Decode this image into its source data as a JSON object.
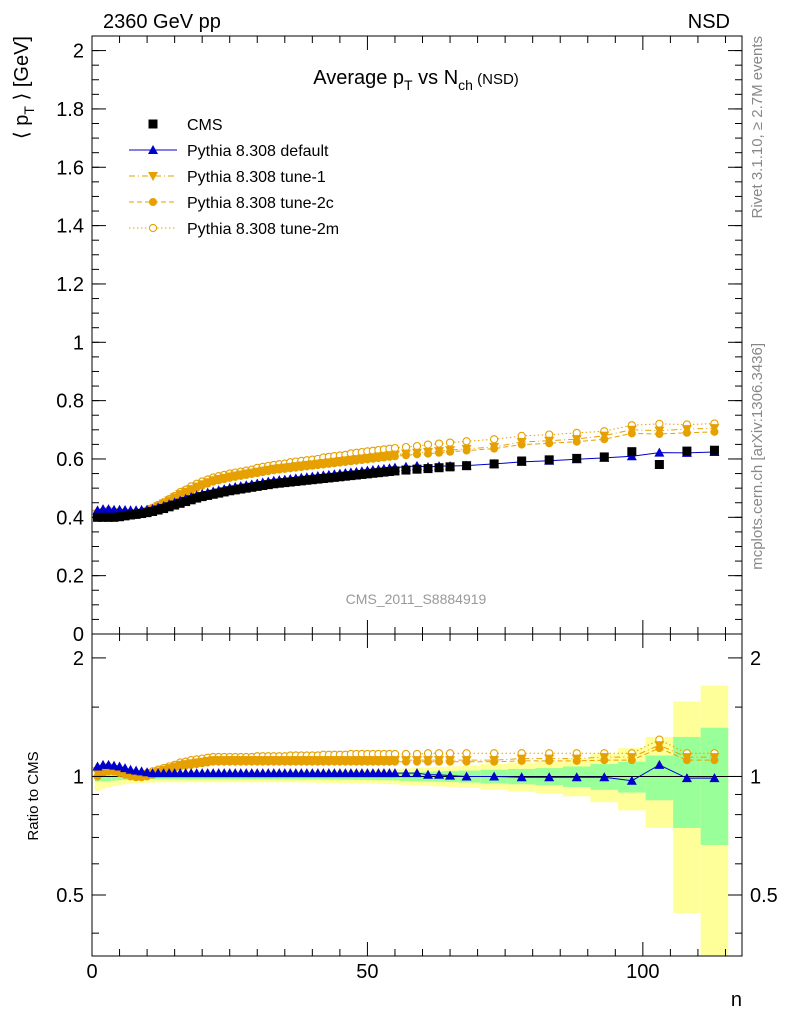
{
  "header": {
    "energy_label": "2360 GeV pp",
    "process_label": "NSD",
    "analysis_id": "CMS_2011_S8884919",
    "side_label_1": "Rivet 3.1.10, ≥ 2.7M events",
    "side_label_2": "mcplots.cern.ch [arXiv:1306.3436]"
  },
  "chart_data": {
    "type": "scatter",
    "title": "Average p",
    "title_sub_T": "T",
    "title_mid": " vs N",
    "title_sub_ch": "ch",
    "title_suffix": " (NSD)",
    "ylabel": "⟨ p",
    "ylabel_sub": "T",
    "ylabel_suffix": " ⟩ [GeV]",
    "xlabel": "n",
    "ratio_ylabel": "Ratio to CMS",
    "xlim": [
      0,
      118
    ],
    "ylim": [
      0,
      2.05
    ],
    "ratio_ylim": [
      0.35,
      2.3
    ],
    "ratio_log": true,
    "x_ticks": [
      0,
      50,
      100
    ],
    "y_ticks": [
      0,
      0.2,
      0.4,
      0.6,
      0.8,
      1,
      1.2,
      1.4,
      1.6,
      1.8,
      2
    ],
    "y_tick_labels": [
      "0",
      "0.2",
      "0.4",
      "0.6",
      "0.8",
      "1",
      "1.2",
      "1.4",
      "1.6",
      "1.8",
      "2"
    ],
    "ratio_ticks": [
      0.5,
      1,
      2
    ],
    "ratio_tick_labels": [
      "0.5",
      "1",
      "2"
    ],
    "legend_position": "top-left",
    "colors": {
      "cms": "#000000",
      "default": "#0000cc",
      "tunes": "#e6a000",
      "band_inner": "#99ff99",
      "band_outer": "#ffff99"
    },
    "series": [
      {
        "name": "CMS",
        "marker": "square",
        "x": [
          1,
          2,
          3,
          4,
          5,
          6,
          7,
          8,
          9,
          10,
          11,
          12,
          13,
          14,
          15,
          16,
          17,
          18,
          19,
          20,
          21,
          22,
          23,
          24,
          25,
          26,
          27,
          28,
          29,
          30,
          31,
          32,
          33,
          34,
          35,
          36,
          37,
          38,
          39,
          40,
          41,
          42,
          43,
          44,
          45,
          46,
          47,
          48,
          49,
          50,
          51,
          52,
          53,
          54,
          55,
          57,
          59,
          61,
          63,
          65,
          68,
          73,
          78,
          83,
          88,
          93,
          98,
          103,
          108,
          113
        ],
        "y": [
          0.4,
          0.4,
          0.4,
          0.4,
          0.402,
          0.405,
          0.408,
          0.41,
          0.413,
          0.416,
          0.42,
          0.425,
          0.43,
          0.436,
          0.442,
          0.448,
          0.454,
          0.46,
          0.466,
          0.471,
          0.475,
          0.479,
          0.483,
          0.487,
          0.491,
          0.494,
          0.497,
          0.5,
          0.503,
          0.506,
          0.509,
          0.512,
          0.515,
          0.517,
          0.519,
          0.521,
          0.523,
          0.525,
          0.527,
          0.529,
          0.531,
          0.533,
          0.535,
          0.537,
          0.539,
          0.541,
          0.543,
          0.545,
          0.547,
          0.549,
          0.551,
          0.553,
          0.555,
          0.557,
          0.559,
          0.562,
          0.565,
          0.567,
          0.57,
          0.573,
          0.577,
          0.583,
          0.593,
          0.597,
          0.602,
          0.607,
          0.625,
          0.581,
          0.627,
          0.63
        ],
        "ratio_inner": [
          0.03,
          0.028,
          0.026,
          0.024,
          0.022,
          0.02,
          0.019,
          0.018,
          0.017,
          0.016,
          0.016,
          0.016,
          0.016,
          0.016,
          0.016,
          0.016,
          0.016,
          0.016,
          0.016,
          0.016,
          0.016,
          0.016,
          0.016,
          0.016,
          0.016,
          0.016,
          0.016,
          0.016,
          0.016,
          0.016,
          0.016,
          0.016,
          0.016,
          0.016,
          0.016,
          0.016,
          0.016,
          0.017,
          0.017,
          0.017,
          0.017,
          0.018,
          0.018,
          0.018,
          0.019,
          0.019,
          0.019,
          0.02,
          0.02,
          0.02,
          0.021,
          0.021,
          0.022,
          0.022,
          0.023,
          0.025,
          0.027,
          0.028,
          0.03,
          0.032,
          0.035,
          0.04,
          0.045,
          0.05,
          0.06,
          0.075,
          0.09,
          0.13,
          0.26,
          0.33
        ],
        "ratio_outer": [
          0.08,
          0.07,
          0.06,
          0.055,
          0.05,
          0.045,
          0.042,
          0.04,
          0.038,
          0.036,
          0.035,
          0.034,
          0.034,
          0.034,
          0.034,
          0.034,
          0.034,
          0.034,
          0.034,
          0.034,
          0.034,
          0.034,
          0.034,
          0.034,
          0.034,
          0.034,
          0.034,
          0.034,
          0.034,
          0.034,
          0.034,
          0.034,
          0.034,
          0.034,
          0.034,
          0.034,
          0.034,
          0.035,
          0.035,
          0.035,
          0.036,
          0.036,
          0.037,
          0.037,
          0.038,
          0.038,
          0.039,
          0.039,
          0.04,
          0.04,
          0.041,
          0.042,
          0.043,
          0.044,
          0.045,
          0.048,
          0.051,
          0.054,
          0.057,
          0.06,
          0.065,
          0.075,
          0.085,
          0.095,
          0.11,
          0.14,
          0.18,
          0.26,
          0.55,
          0.7
        ]
      },
      {
        "name": "Pythia 8.308 default",
        "marker": "triangle-up",
        "x": [
          1,
          2,
          3,
          4,
          5,
          6,
          7,
          8,
          9,
          10,
          11,
          12,
          13,
          14,
          15,
          16,
          17,
          18,
          19,
          20,
          21,
          22,
          23,
          24,
          25,
          26,
          27,
          28,
          29,
          30,
          31,
          32,
          33,
          34,
          35,
          36,
          37,
          38,
          39,
          40,
          41,
          42,
          43,
          44,
          45,
          46,
          47,
          48,
          49,
          50,
          51,
          52,
          53,
          54,
          55,
          57,
          59,
          61,
          63,
          65,
          68,
          73,
          78,
          83,
          88,
          93,
          98,
          103,
          108,
          113
        ],
        "ratio": [
          1.06,
          1.07,
          1.07,
          1.065,
          1.06,
          1.05,
          1.04,
          1.035,
          1.03,
          1.025,
          1.02,
          1.02,
          1.02,
          1.02,
          1.02,
          1.02,
          1.02,
          1.02,
          1.02,
          1.02,
          1.02,
          1.02,
          1.02,
          1.02,
          1.02,
          1.02,
          1.02,
          1.02,
          1.02,
          1.02,
          1.02,
          1.02,
          1.02,
          1.02,
          1.02,
          1.02,
          1.02,
          1.02,
          1.02,
          1.02,
          1.02,
          1.02,
          1.02,
          1.02,
          1.02,
          1.02,
          1.02,
          1.02,
          1.02,
          1.02,
          1.02,
          1.02,
          1.02,
          1.02,
          1.02,
          1.02,
          1.02,
          1.01,
          1.01,
          1.005,
          1.0,
          1.0,
          0.995,
          0.995,
          0.995,
          0.995,
          0.975,
          1.07,
          0.99,
          0.99
        ]
      },
      {
        "name": "Pythia 8.308 tune-1",
        "marker": "triangle-down",
        "x": [
          1,
          2,
          3,
          4,
          5,
          6,
          7,
          8,
          9,
          10,
          11,
          12,
          13,
          14,
          15,
          16,
          17,
          18,
          19,
          20,
          21,
          22,
          23,
          24,
          25,
          26,
          27,
          28,
          29,
          30,
          31,
          32,
          33,
          34,
          35,
          36,
          37,
          38,
          39,
          40,
          41,
          42,
          43,
          44,
          45,
          46,
          47,
          48,
          49,
          50,
          51,
          52,
          53,
          54,
          55,
          57,
          59,
          61,
          63,
          65,
          68,
          73,
          78,
          83,
          88,
          93,
          98,
          103,
          108,
          113
        ],
        "ratio": [
          1.03,
          1.04,
          1.045,
          1.04,
          1.035,
          1.02,
          1.01,
          1.005,
          1.005,
          1.01,
          1.02,
          1.03,
          1.04,
          1.05,
          1.06,
          1.07,
          1.075,
          1.08,
          1.085,
          1.09,
          1.095,
          1.1,
          1.1,
          1.1,
          1.1,
          1.1,
          1.1,
          1.1,
          1.1,
          1.1,
          1.1,
          1.1,
          1.1,
          1.1,
          1.1,
          1.1,
          1.1,
          1.1,
          1.1,
          1.1,
          1.1,
          1.1,
          1.1,
          1.1,
          1.1,
          1.1,
          1.1,
          1.1,
          1.1,
          1.1,
          1.1,
          1.1,
          1.1,
          1.1,
          1.1,
          1.1,
          1.1,
          1.1,
          1.1,
          1.1,
          1.1,
          1.1,
          1.11,
          1.11,
          1.11,
          1.12,
          1.12,
          1.2,
          1.12,
          1.12
        ]
      },
      {
        "name": "Pythia 8.308 tune-2c",
        "marker": "circle",
        "x": [
          1,
          2,
          3,
          4,
          5,
          6,
          7,
          8,
          9,
          10,
          11,
          12,
          13,
          14,
          15,
          16,
          17,
          18,
          19,
          20,
          21,
          22,
          23,
          24,
          25,
          26,
          27,
          28,
          29,
          30,
          31,
          32,
          33,
          34,
          35,
          36,
          37,
          38,
          39,
          40,
          41,
          42,
          43,
          44,
          45,
          46,
          47,
          48,
          49,
          50,
          51,
          52,
          53,
          54,
          55,
          57,
          59,
          61,
          63,
          65,
          68,
          73,
          78,
          83,
          88,
          93,
          98,
          103,
          108,
          113
        ],
        "ratio": [
          1.0,
          1.02,
          1.03,
          1.03,
          1.02,
          1.01,
          1.0,
          0.995,
          0.995,
          1.0,
          1.01,
          1.02,
          1.03,
          1.04,
          1.05,
          1.06,
          1.065,
          1.07,
          1.075,
          1.08,
          1.085,
          1.09,
          1.09,
          1.09,
          1.09,
          1.09,
          1.09,
          1.09,
          1.09,
          1.09,
          1.09,
          1.09,
          1.09,
          1.09,
          1.09,
          1.09,
          1.09,
          1.09,
          1.09,
          1.09,
          1.09,
          1.09,
          1.09,
          1.09,
          1.09,
          1.09,
          1.09,
          1.09,
          1.09,
          1.09,
          1.09,
          1.09,
          1.09,
          1.09,
          1.09,
          1.09,
          1.09,
          1.09,
          1.09,
          1.09,
          1.09,
          1.09,
          1.095,
          1.095,
          1.095,
          1.1,
          1.1,
          1.18,
          1.1,
          1.1
        ]
      },
      {
        "name": "Pythia 8.308 tune-2m",
        "marker": "circle-open",
        "x": [
          1,
          2,
          3,
          4,
          5,
          6,
          7,
          8,
          9,
          10,
          11,
          12,
          13,
          14,
          15,
          16,
          17,
          18,
          19,
          20,
          21,
          22,
          23,
          24,
          25,
          26,
          27,
          28,
          29,
          30,
          31,
          32,
          33,
          34,
          35,
          36,
          37,
          38,
          39,
          40,
          41,
          42,
          43,
          44,
          45,
          46,
          47,
          48,
          49,
          50,
          51,
          52,
          53,
          54,
          55,
          57,
          59,
          61,
          63,
          65,
          68,
          73,
          78,
          83,
          88,
          93,
          98,
          103,
          108,
          113
        ],
        "ratio": [
          1.04,
          1.05,
          1.06,
          1.05,
          1.04,
          1.03,
          1.02,
          1.015,
          1.015,
          1.02,
          1.03,
          1.04,
          1.05,
          1.06,
          1.07,
          1.085,
          1.09,
          1.1,
          1.105,
          1.11,
          1.115,
          1.12,
          1.12,
          1.12,
          1.12,
          1.12,
          1.12,
          1.12,
          1.12,
          1.125,
          1.125,
          1.125,
          1.125,
          1.125,
          1.125,
          1.13,
          1.13,
          1.13,
          1.13,
          1.13,
          1.13,
          1.135,
          1.135,
          1.135,
          1.135,
          1.135,
          1.14,
          1.14,
          1.14,
          1.14,
          1.14,
          1.14,
          1.14,
          1.14,
          1.14,
          1.14,
          1.14,
          1.145,
          1.145,
          1.145,
          1.145,
          1.145,
          1.145,
          1.145,
          1.145,
          1.145,
          1.145,
          1.24,
          1.145,
          1.145
        ]
      }
    ]
  }
}
